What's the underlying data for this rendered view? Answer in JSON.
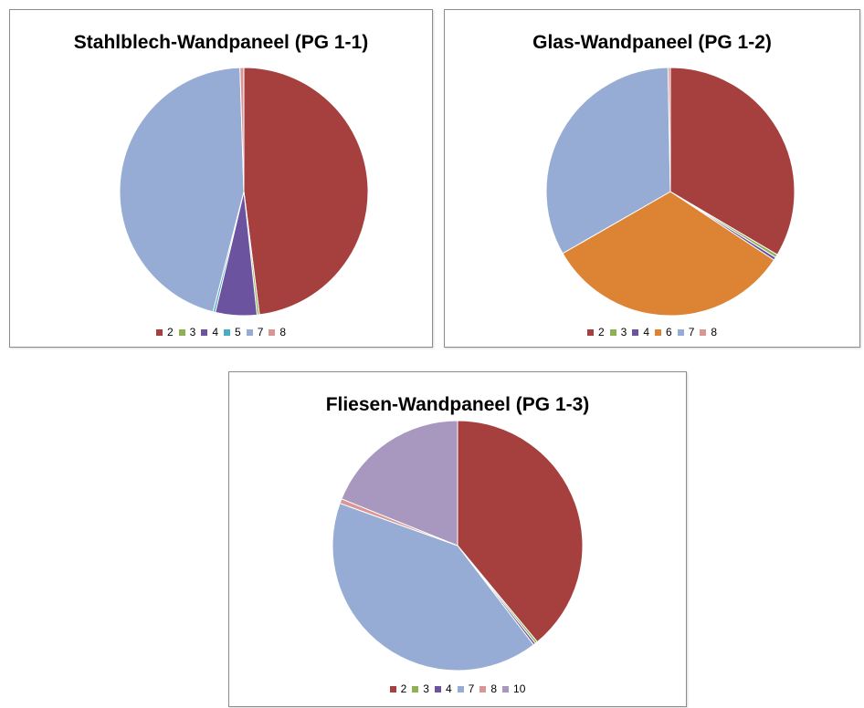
{
  "chart_data": [
    {
      "type": "pie",
      "title": "Stahlblech-Wandpaneel (PG 1-1)",
      "start_angle_deg": 0,
      "legend_position": "bottom",
      "categories": [
        "2",
        "3",
        "4",
        "5",
        "7",
        "8"
      ],
      "values": [
        48.0,
        0.3,
        5.4,
        0.3,
        45.5,
        0.5
      ],
      "colors": [
        "#A6403E",
        "#8DB255",
        "#6B53A0",
        "#4AACC5",
        "#96ACD4",
        "#DA9694"
      ]
    },
    {
      "type": "pie",
      "title": "Glas-Wandpaneel (PG 1-2)",
      "start_angle_deg": 0,
      "legend_position": "bottom",
      "categories": [
        "2",
        "3",
        "4",
        "6",
        "7",
        "8"
      ],
      "values": [
        33.5,
        0.4,
        0.4,
        32.4,
        33.0,
        0.3
      ],
      "colors": [
        "#A6403E",
        "#8DB255",
        "#6B53A0",
        "#DD8434",
        "#96ACD4",
        "#DA9694"
      ]
    },
    {
      "type": "pie",
      "title": "Fliesen-Wandpaneel (PG 1-3)",
      "start_angle_deg": 0,
      "legend_position": "bottom",
      "categories": [
        "2",
        "3",
        "4",
        "7",
        "8",
        "10"
      ],
      "values": [
        39.0,
        0.3,
        0.3,
        40.9,
        0.6,
        18.9
      ],
      "colors": [
        "#A6403E",
        "#8DB255",
        "#6B53A0",
        "#96ACD4",
        "#DA9694",
        "#A897BF"
      ]
    }
  ]
}
